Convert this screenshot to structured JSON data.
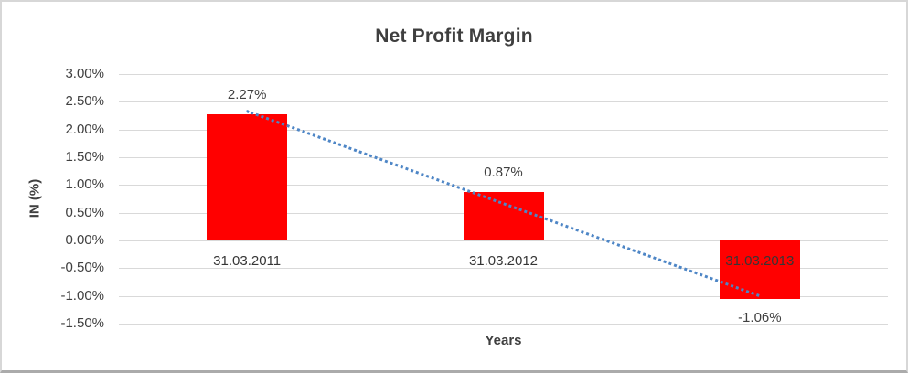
{
  "chart_data": {
    "type": "bar",
    "title": "Net Profit Margin",
    "xlabel": "Years",
    "ylabel": "IN (%)",
    "categories": [
      "31.03.2011",
      "31.03.2012",
      "31.03.2013"
    ],
    "series": [
      {
        "name": "Net Profit Margin",
        "values": [
          2.27,
          0.87,
          -1.06
        ],
        "data_labels": [
          "2.27%",
          "0.87%",
          "-1.06%"
        ],
        "color": "#ff0000"
      }
    ],
    "ylim": [
      -1.5,
      3.0
    ],
    "ytick_step": 0.5,
    "ytick_labels": [
      "3.00%",
      "2.50%",
      "2.00%",
      "1.50%",
      "1.00%",
      "0.50%",
      "0.00%",
      "-0.50%",
      "-1.00%",
      "-1.50%"
    ],
    "grid": true,
    "legend": "none",
    "trendline": {
      "type": "linear",
      "style": "dotted",
      "color": "#4e86c6",
      "fitted_endpoints": [
        2.36,
        -0.97
      ]
    },
    "colors": {
      "bar": "#ff0000",
      "trendline": "#4e86c6",
      "gridline": "#d9d9d9",
      "title_text": "#3f3f3f",
      "tick_text": "#404040",
      "frame_border": "#d7d7d7"
    }
  }
}
